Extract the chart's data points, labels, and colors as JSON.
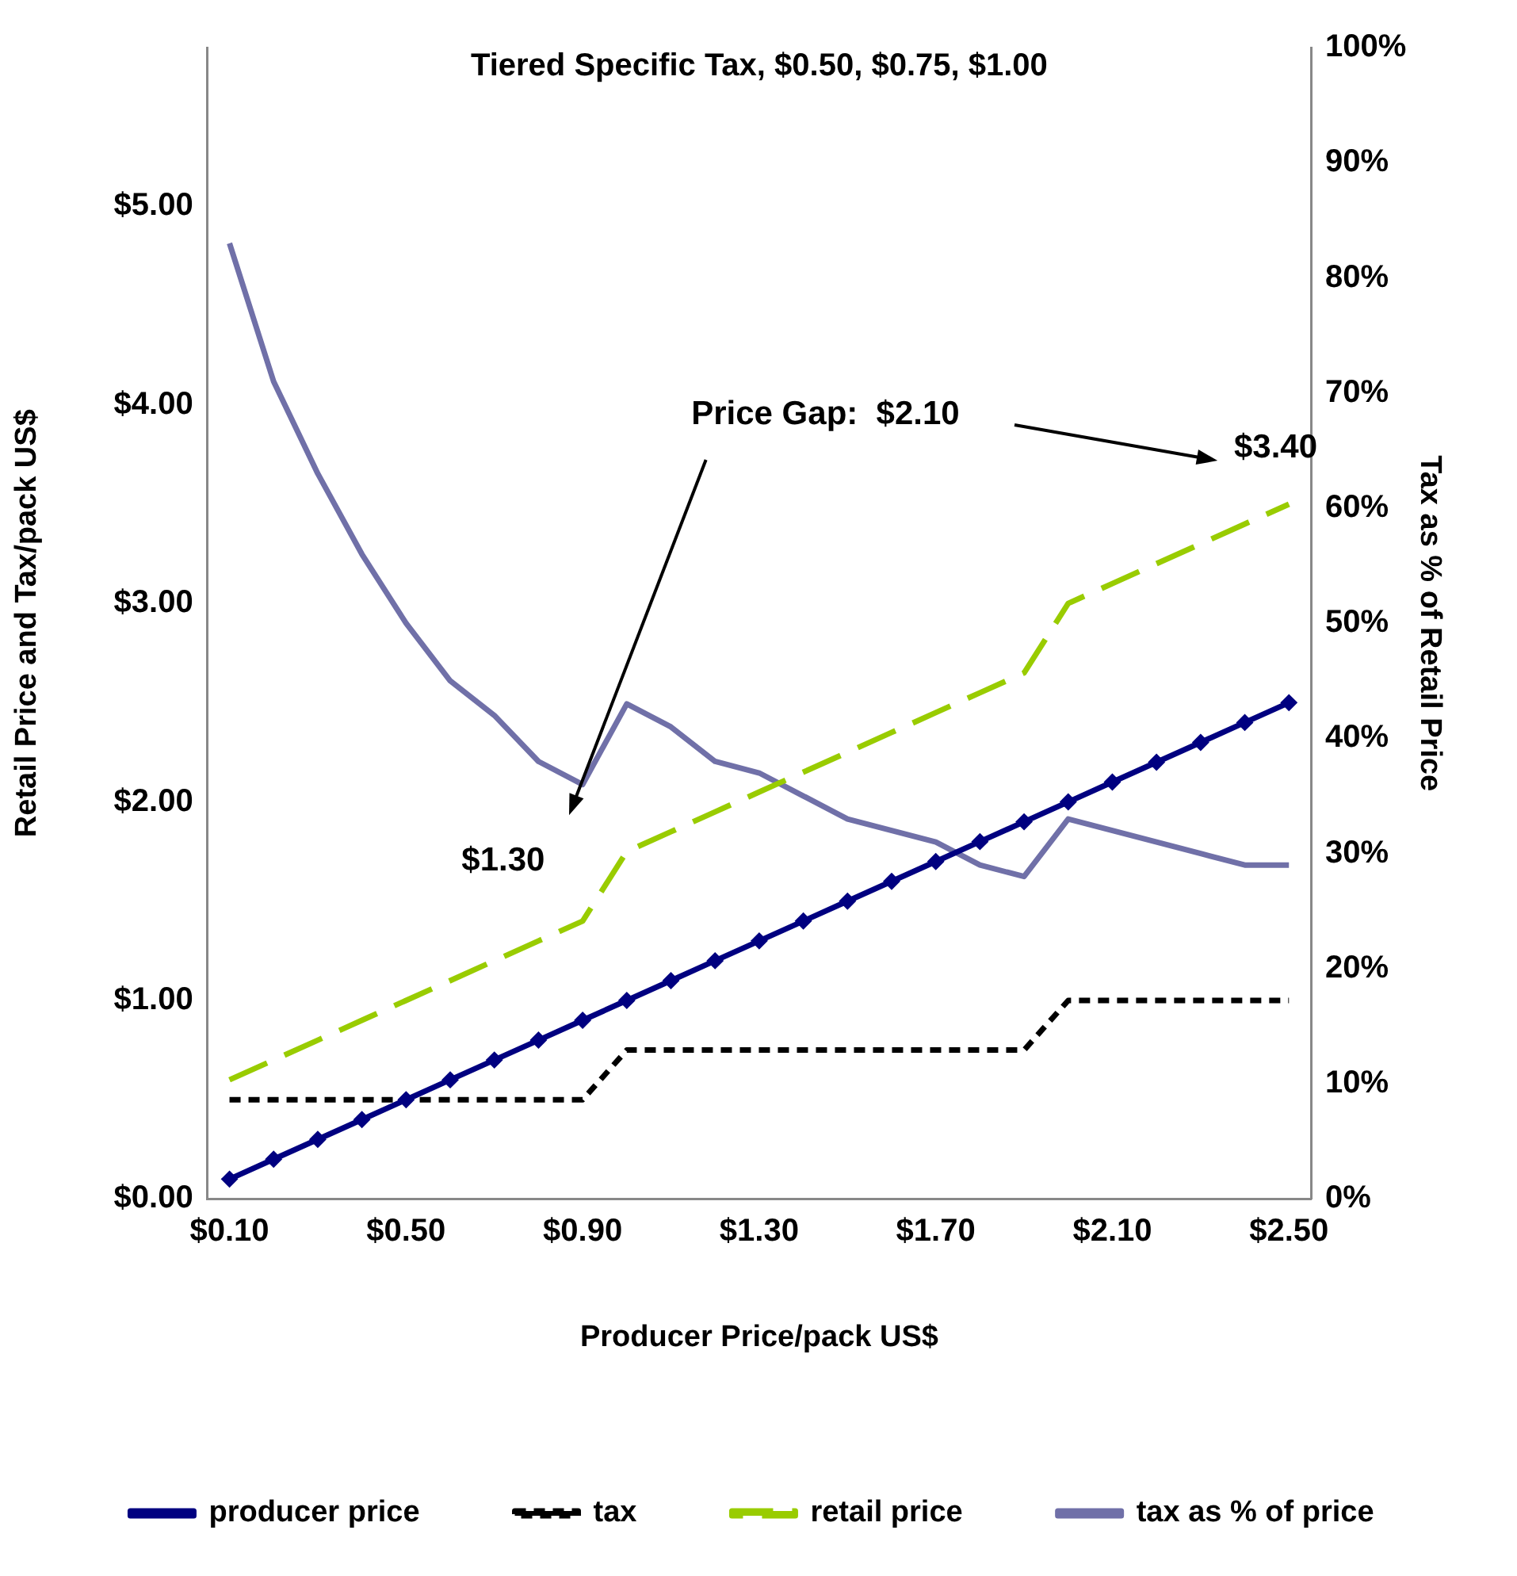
{
  "chart_data": {
    "type": "line",
    "title": "Tiered Specific Tax, $0.50, $0.75, $1.00",
    "xlabel": "Producer Price/pack US$",
    "ylabel": "Retail Price and Tax/pack US$",
    "y2label": "Tax as % of Retail Price",
    "x": [
      0.1,
      0.2,
      0.3,
      0.4,
      0.5,
      0.6,
      0.7,
      0.8,
      0.9,
      1.0,
      1.1,
      1.2,
      1.3,
      1.4,
      1.5,
      1.6,
      1.7,
      1.8,
      1.9,
      2.0,
      2.1,
      2.2,
      2.3,
      2.4,
      2.5
    ],
    "xlim": [
      0.05,
      2.55
    ],
    "xticks": [
      {
        "value": 0.1,
        "label": "$0.10"
      },
      {
        "value": 0.5,
        "label": "$0.50"
      },
      {
        "value": 0.9,
        "label": "$0.90"
      },
      {
        "value": 1.3,
        "label": "$1.30"
      },
      {
        "value": 1.7,
        "label": "$1.70"
      },
      {
        "value": 2.1,
        "label": "$2.10"
      },
      {
        "value": 2.5,
        "label": "$2.50"
      }
    ],
    "ylim": [
      0,
      5.8
    ],
    "yticks": [
      {
        "value": 0,
        "label": "$0.00"
      },
      {
        "value": 1,
        "label": "$1.00"
      },
      {
        "value": 2,
        "label": "$2.00"
      },
      {
        "value": 3,
        "label": "$3.00"
      },
      {
        "value": 4,
        "label": "$4.00"
      },
      {
        "value": 5,
        "label": "$5.00"
      }
    ],
    "y2lim": [
      0,
      100
    ],
    "y2ticks": [
      {
        "value": 0,
        "label": "0%"
      },
      {
        "value": 10,
        "label": "10%"
      },
      {
        "value": 20,
        "label": "20%"
      },
      {
        "value": 30,
        "label": "30%"
      },
      {
        "value": 40,
        "label": "40%"
      },
      {
        "value": 50,
        "label": "50%"
      },
      {
        "value": 60,
        "label": "60%"
      },
      {
        "value": 70,
        "label": "70%"
      },
      {
        "value": 80,
        "label": "80%"
      },
      {
        "value": 90,
        "label": "90%"
      },
      {
        "value": 100,
        "label": "100%"
      }
    ],
    "grid": false,
    "legend": "bottom",
    "series": [
      {
        "name": "producer price",
        "color": "#000080",
        "marker": "diamond",
        "line_style": "solid",
        "values": [
          0.1,
          0.2,
          0.3,
          0.4,
          0.5,
          0.6,
          0.7,
          0.8,
          0.9,
          1.0,
          1.1,
          1.2,
          1.3,
          1.4,
          1.5,
          1.6,
          1.7,
          1.8,
          1.9,
          2.0,
          2.1,
          2.2,
          2.3,
          2.4,
          2.5
        ]
      },
      {
        "name": "tax",
        "color": "#000000",
        "marker": "none",
        "line_style": "dotted",
        "values": [
          0.5,
          0.5,
          0.5,
          0.5,
          0.5,
          0.5,
          0.5,
          0.5,
          0.5,
          0.75,
          0.75,
          0.75,
          0.75,
          0.75,
          0.75,
          0.75,
          0.75,
          0.75,
          0.75,
          1.0,
          1.0,
          1.0,
          1.0,
          1.0,
          1.0
        ]
      },
      {
        "name": "retail price",
        "color": "#99cc00",
        "marker": "none",
        "line_style": "dashed",
        "values": [
          0.6,
          0.7,
          0.8,
          0.9,
          1.0,
          1.1,
          1.2,
          1.3,
          1.4,
          1.75,
          1.85,
          1.95,
          2.05,
          2.15,
          2.25,
          2.35,
          2.45,
          2.55,
          2.65,
          3.0,
          3.1,
          3.2,
          3.3,
          3.4,
          3.5
        ]
      },
      {
        "name": "tax as % of price",
        "color": "#7070a8",
        "marker": "none",
        "line_style": "solid",
        "axis": "y2",
        "values": [
          83,
          71,
          63,
          56,
          50,
          45,
          42,
          38,
          36,
          43,
          41,
          38,
          37,
          35,
          33,
          32,
          31,
          29,
          28,
          33,
          32,
          31,
          30,
          29,
          29
        ]
      }
    ],
    "annotations": [
      "Price Gap:  $2.10",
      "$1.30",
      "$3.40"
    ]
  }
}
